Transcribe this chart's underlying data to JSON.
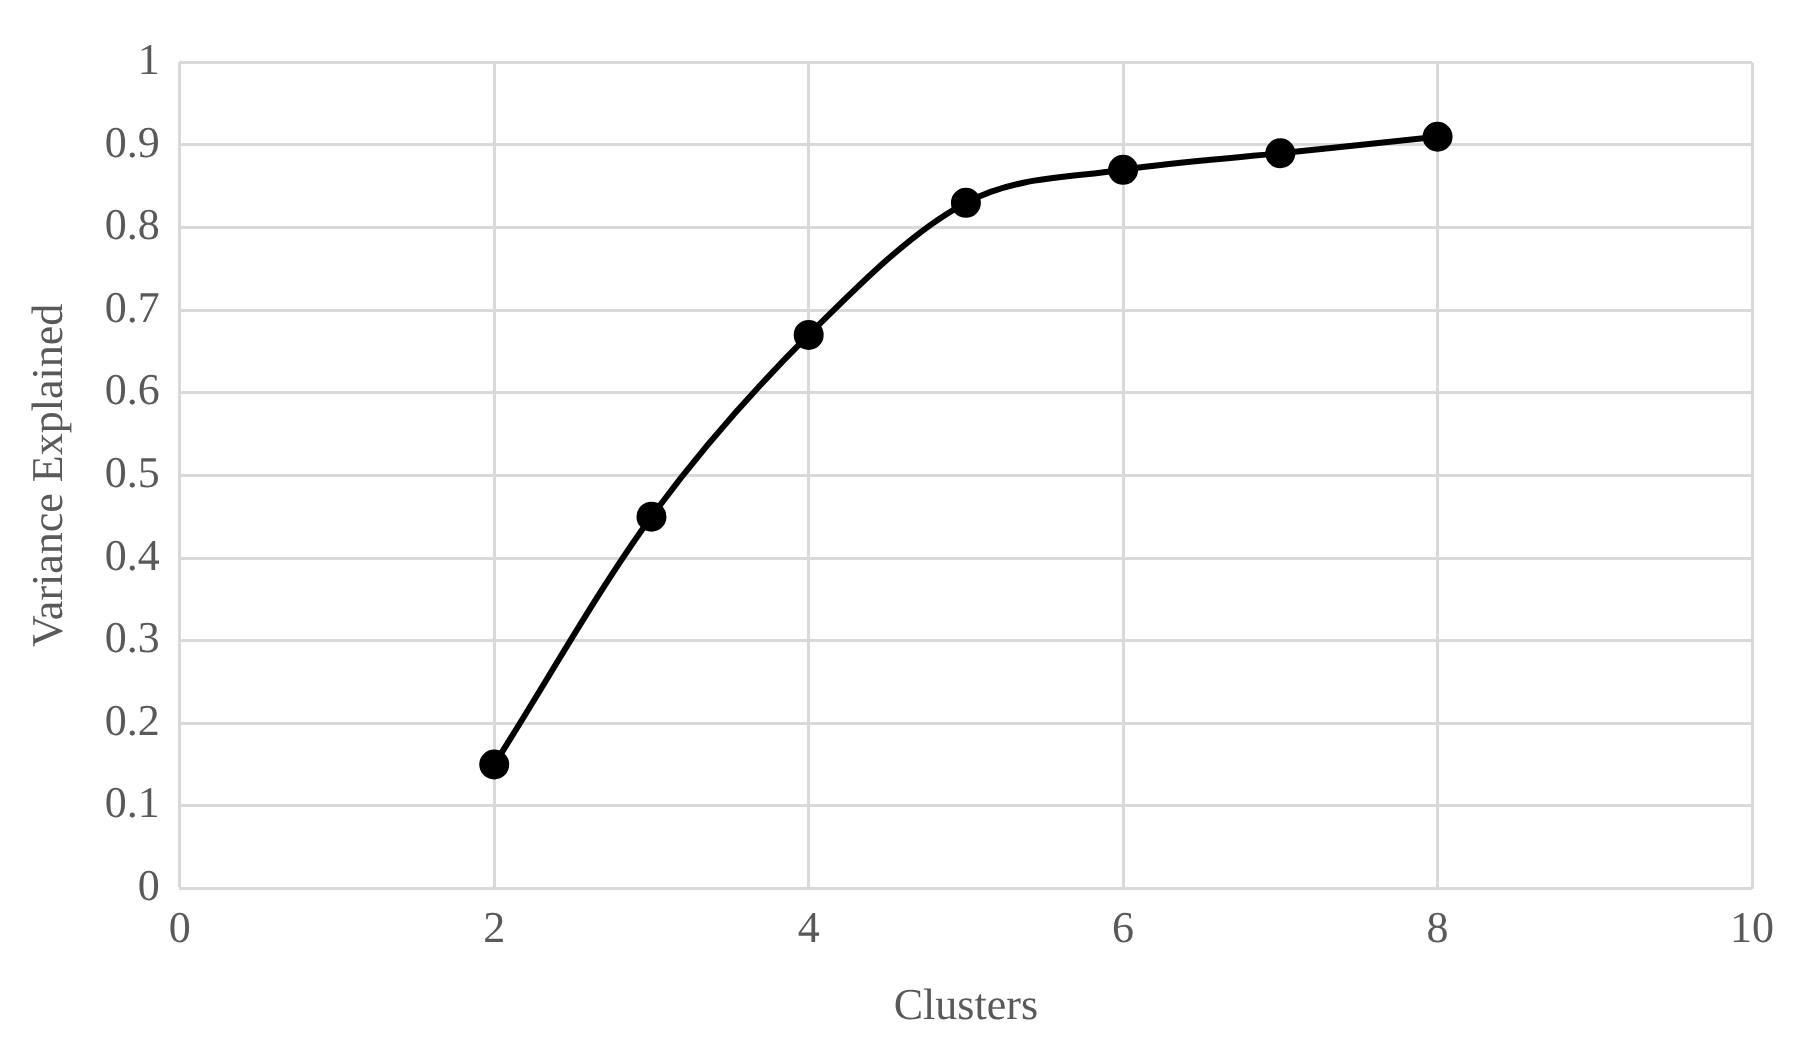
{
  "chart_data": {
    "type": "line",
    "xlabel": "Clusters",
    "ylabel": "Variance Explained",
    "x": [
      2,
      3,
      4,
      5,
      6,
      7,
      8
    ],
    "series": [
      {
        "color": "#000000",
        "values": [
          0.15,
          0.45,
          0.67,
          0.83,
          0.87,
          0.89,
          0.91
        ]
      }
    ],
    "xlim": [
      0,
      10
    ],
    "xticks": [
      0,
      2,
      4,
      6,
      8,
      10
    ],
    "ylim": [
      0,
      1
    ],
    "yticks": [
      0,
      0.1,
      0.2,
      0.3,
      0.4,
      0.5,
      0.6,
      0.7,
      0.8,
      0.9,
      1
    ],
    "grid": true,
    "legend": false,
    "marker": "circle",
    "line_style": "solid"
  }
}
